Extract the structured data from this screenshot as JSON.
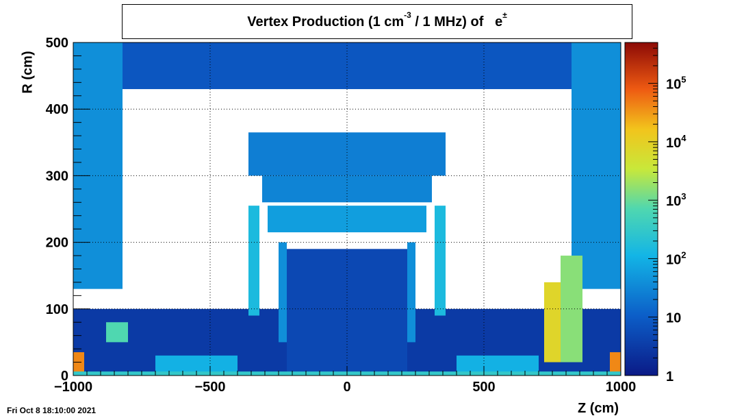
{
  "chart_data": {
    "type": "heatmap",
    "title": "Vertex Production (1 cm",
    "title_parts": {
      "pre": "Vertex Production (1 cm",
      "exp": "-3",
      "post": " / 1 MHz) of",
      "particle": "e",
      "particle_sup": "±"
    },
    "xlabel": "Z (cm)",
    "ylabel": "R (cm)",
    "xlim": [
      -1000,
      1000
    ],
    "ylim": [
      0,
      500
    ],
    "x_ticks": [
      -1000,
      -500,
      0,
      500,
      1000
    ],
    "x_tick_labels": [
      "−1000",
      "−500",
      "0",
      "500",
      "1000"
    ],
    "y_ticks": [
      0,
      100,
      200,
      300,
      400,
      500
    ],
    "y_tick_labels": [
      "0",
      "100",
      "200",
      "300",
      "400",
      "500"
    ],
    "grid": true,
    "colorbar": {
      "scale": "log",
      "range": [
        1,
        500000
      ],
      "tick_values": [
        1,
        10,
        100,
        1000,
        10000,
        100000
      ],
      "ticks": [
        {
          "base": "1",
          "exp": ""
        },
        {
          "base": "10",
          "exp": ""
        },
        {
          "base": "10",
          "exp": "2"
        },
        {
          "base": "10",
          "exp": "3"
        },
        {
          "base": "10",
          "exp": "4"
        },
        {
          "base": "10",
          "exp": "5"
        }
      ]
    },
    "regions": [
      {
        "z": [
          -1000,
          -820
        ],
        "r": [
          130,
          500
        ],
        "value": 40
      },
      {
        "z": [
          820,
          1000
        ],
        "r": [
          130,
          500
        ],
        "value": 40
      },
      {
        "z": [
          -820,
          820
        ],
        "r": [
          430,
          500
        ],
        "value": 8
      },
      {
        "z": [
          -1000,
          1000
        ],
        "r": [
          0,
          100
        ],
        "value": 3
      },
      {
        "z": [
          -360,
          360
        ],
        "r": [
          300,
          365
        ],
        "value": 25
      },
      {
        "z": [
          -310,
          310
        ],
        "r": [
          260,
          300
        ],
        "value": 30
      },
      {
        "z": [
          -290,
          290
        ],
        "r": [
          215,
          255
        ],
        "value": 60
      },
      {
        "z": [
          -220,
          220
        ],
        "r": [
          5,
          190
        ],
        "value": 5
      },
      {
        "z": [
          -360,
          -320
        ],
        "r": [
          90,
          255
        ],
        "value": 150
      },
      {
        "z": [
          320,
          360
        ],
        "r": [
          90,
          255
        ],
        "value": 150
      },
      {
        "z": [
          -250,
          -220
        ],
        "r": [
          50,
          200
        ],
        "value": 40
      },
      {
        "z": [
          220,
          250
        ],
        "r": [
          50,
          200
        ],
        "value": 40
      },
      {
        "z": [
          720,
          780
        ],
        "r": [
          20,
          140
        ],
        "value": 8000
      },
      {
        "z": [
          780,
          860
        ],
        "r": [
          20,
          180
        ],
        "value": 1500
      },
      {
        "z": [
          -1000,
          -960
        ],
        "r": [
          5,
          35
        ],
        "value": 40000
      },
      {
        "z": [
          960,
          1000
        ],
        "r": [
          5,
          35
        ],
        "value": 40000
      },
      {
        "z": [
          -880,
          -800
        ],
        "r": [
          50,
          80
        ],
        "value": 700
      },
      {
        "z": [
          -700,
          -400
        ],
        "r": [
          5,
          30
        ],
        "value": 100
      },
      {
        "z": [
          400,
          700
        ],
        "r": [
          5,
          30
        ],
        "value": 100
      },
      {
        "z": [
          -1000,
          1000
        ],
        "r": [
          0,
          6
        ],
        "value": 300
      }
    ]
  },
  "footer": {
    "date": "Fri Oct  8 18:10:00 2021"
  }
}
